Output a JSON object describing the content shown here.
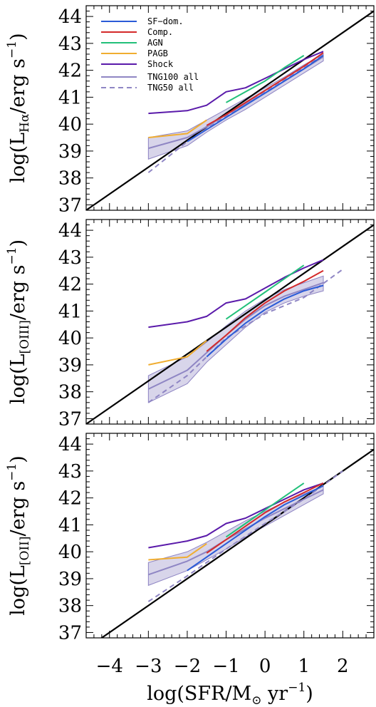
{
  "chart_data": {
    "type": "line",
    "x_axis": {
      "label_parts": [
        "log(SFR/M",
        "⊙",
        " yr",
        "−1",
        ")"
      ],
      "ticks": [
        -4,
        -3,
        -2,
        -1,
        0,
        1,
        2
      ],
      "tick_labels": [
        "−4",
        "−3",
        "−2",
        "−1",
        "0",
        "1",
        "2"
      ],
      "xlim": [
        -4.6,
        2.8
      ]
    },
    "legend": {
      "position": "top-left",
      "entries": [
        {
          "label": "SF−dom.",
          "color": "#2a5bd7",
          "style": "solid"
        },
        {
          "label": "Comp.",
          "color": "#d42a2a",
          "style": "solid"
        },
        {
          "label": "AGN",
          "color": "#22c07a",
          "style": "solid"
        },
        {
          "label": "PAGB",
          "color": "#f0ad30",
          "style": "solid"
        },
        {
          "label": "Shock",
          "color": "#5a1aaa",
          "style": "solid"
        },
        {
          "label": "TNG100 all",
          "color": "#8f86c4",
          "style": "solid"
        },
        {
          "label": "TNG50 all",
          "color": "#8f86c4",
          "style": "dashed"
        }
      ]
    },
    "panels": [
      {
        "id": "halpha",
        "ylabel_parts": [
          "log(L",
          "Hα",
          "/erg s",
          "−1",
          ")"
        ],
        "ylim": [
          36.8,
          44.4
        ],
        "yticks": [
          37,
          38,
          39,
          40,
          41,
          42,
          43,
          44
        ],
        "ytick_labels": [
          "37",
          "38",
          "39",
          "40",
          "41",
          "42",
          "43",
          "44"
        ],
        "reference_line": {
          "x": [
            -4.6,
            2.8
          ],
          "y": [
            36.8,
            44.2
          ],
          "color": "#000000"
        },
        "band": {
          "x": [
            -3,
            -2,
            -1.5,
            -1,
            -0.5,
            0,
            0.5,
            1,
            1.5
          ],
          "lower": [
            38.7,
            39.2,
            39.7,
            40.15,
            40.55,
            41.0,
            41.45,
            41.9,
            42.35
          ],
          "upper": [
            39.5,
            39.75,
            40.15,
            40.55,
            40.95,
            41.35,
            41.75,
            42.2,
            42.6
          ],
          "color": "#8f86c4"
        },
        "series": [
          {
            "name": "TNG100 all",
            "color": "#8f86c4",
            "dash": false,
            "x": [
              -3,
              -2,
              -1.5,
              -1,
              -0.5,
              0,
              0.5,
              1,
              1.5
            ],
            "y": [
              39.1,
              39.5,
              39.9,
              40.35,
              40.75,
              41.15,
              41.6,
              42.05,
              42.5
            ]
          },
          {
            "name": "TNG50 all",
            "color": "#8f86c4",
            "dash": true,
            "x": [
              -3,
              -2,
              -1,
              0,
              1,
              1.5
            ],
            "y": [
              38.2,
              39.35,
              40.3,
              41.2,
              42.1,
              42.6
            ]
          },
          {
            "name": "Shock",
            "color": "#5a1aaa",
            "dash": false,
            "x": [
              -3,
              -2,
              -1.5,
              -1,
              -0.5,
              0,
              0.5,
              1,
              1.5
            ],
            "y": [
              40.4,
              40.5,
              40.7,
              41.2,
              41.35,
              41.7,
              42.05,
              42.4,
              42.7
            ]
          },
          {
            "name": "AGN",
            "color": "#22c07a",
            "dash": false,
            "x": [
              -1,
              -0.5,
              0,
              0.5,
              1
            ],
            "y": [
              40.8,
              41.2,
              41.6,
              42.1,
              42.55
            ]
          },
          {
            "name": "PAGB",
            "color": "#f0ad30",
            "dash": false,
            "x": [
              -3,
              -2,
              -1.5
            ],
            "y": [
              39.5,
              39.65,
              40.15
            ]
          },
          {
            "name": "Comp.",
            "color": "#d42a2a",
            "dash": false,
            "x": [
              -1.5,
              -1,
              -0.5,
              0,
              0.5,
              1,
              1.5
            ],
            "y": [
              39.95,
              40.35,
              40.8,
              41.25,
              41.7,
              42.15,
              42.65
            ]
          },
          {
            "name": "SF−dom.",
            "color": "#2a5bd7",
            "dash": false,
            "x": [
              -2,
              -1.5,
              -1,
              -0.5,
              0,
              0.5,
              1,
              1.5
            ],
            "y": [
              39.35,
              39.8,
              40.25,
              40.7,
              41.15,
              41.6,
              42.05,
              42.55
            ]
          }
        ]
      },
      {
        "id": "oiii",
        "ylabel_parts": [
          "log(L",
          "[OIII]",
          "/erg s",
          "−1",
          ")"
        ],
        "ylim": [
          36.8,
          44.4
        ],
        "yticks": [
          37,
          38,
          39,
          40,
          41,
          42,
          43,
          44
        ],
        "ytick_labels": [
          "37",
          "38",
          "39",
          "40",
          "41",
          "42",
          "43",
          "44"
        ],
        "reference_line": {
          "x": [
            -4.6,
            2.8
          ],
          "y": [
            36.8,
            44.2
          ],
          "color": "#000000"
        },
        "band": {
          "x": [
            -3,
            -2,
            -1.5,
            -1,
            -0.5,
            0,
            0.5,
            1,
            1.5
          ],
          "lower": [
            37.6,
            38.3,
            39.1,
            39.75,
            40.4,
            40.95,
            41.3,
            41.55,
            41.75
          ],
          "upper": [
            38.6,
            39.3,
            39.85,
            40.45,
            41.0,
            41.45,
            41.8,
            42.05,
            42.3
          ],
          "color": "#8f86c4"
        },
        "series": [
          {
            "name": "TNG100 all",
            "color": "#8f86c4",
            "dash": false,
            "x": [
              -3,
              -2,
              -1.5,
              -1,
              -0.5,
              0,
              0.5,
              1,
              1.5
            ],
            "y": [
              38.1,
              38.8,
              39.45,
              40.1,
              40.7,
              41.2,
              41.55,
              41.8,
              42.05
            ]
          },
          {
            "name": "TNG50 all",
            "color": "#8f86c4",
            "dash": true,
            "x": [
              -3,
              -2,
              -1,
              0,
              1,
              2
            ],
            "y": [
              37.6,
              38.6,
              40.0,
              40.9,
              41.5,
              42.55
            ]
          },
          {
            "name": "Shock",
            "color": "#5a1aaa",
            "dash": false,
            "x": [
              -3,
              -2,
              -1.5,
              -1,
              -0.5,
              0,
              0.5,
              1,
              1.5
            ],
            "y": [
              40.4,
              40.6,
              40.8,
              41.3,
              41.45,
              41.85,
              42.25,
              42.6,
              42.9
            ]
          },
          {
            "name": "AGN",
            "color": "#22c07a",
            "dash": false,
            "x": [
              -1,
              -0.5,
              0,
              0.5,
              1
            ],
            "y": [
              40.7,
              41.2,
              41.7,
              42.2,
              42.7
            ]
          },
          {
            "name": "PAGB",
            "color": "#f0ad30",
            "dash": false,
            "x": [
              -3,
              -2,
              -1.5
            ],
            "y": [
              39.0,
              39.3,
              39.9
            ]
          },
          {
            "name": "Comp.",
            "color": "#d42a2a",
            "dash": false,
            "x": [
              -1.5,
              -1,
              -0.5,
              0,
              0.5,
              1,
              1.5
            ],
            "y": [
              39.5,
              40.1,
              40.75,
              41.3,
              41.75,
              42.1,
              42.5
            ]
          },
          {
            "name": "SF−dom.",
            "color": "#2a5bd7",
            "dash": false,
            "x": [
              -1.5,
              -1,
              -0.5,
              0,
              0.5,
              1,
              1.5
            ],
            "y": [
              39.3,
              39.95,
              40.55,
              41.05,
              41.45,
              41.75,
              41.95
            ]
          }
        ]
      },
      {
        "id": "oii",
        "ylabel_parts": [
          "log(L",
          "[OII]",
          "/erg s",
          "−1",
          ")"
        ],
        "ylim": [
          36.8,
          44.4
        ],
        "yticks": [
          37,
          38,
          39,
          40,
          41,
          42,
          43,
          44
        ],
        "ytick_labels": [
          "37",
          "38",
          "39",
          "40",
          "41",
          "42",
          "43",
          "44"
        ],
        "reference_line": {
          "x": [
            -4.6,
            2.8
          ],
          "y": [
            36.4,
            43.8
          ],
          "color": "#000000"
        },
        "band": {
          "x": [
            -3,
            -2,
            -1.5,
            -1,
            -0.5,
            0,
            0.5,
            1,
            1.5
          ],
          "lower": [
            38.75,
            39.3,
            39.7,
            40.1,
            40.55,
            40.95,
            41.35,
            41.75,
            42.15
          ],
          "upper": [
            39.6,
            40.0,
            40.35,
            40.75,
            41.15,
            41.5,
            41.85,
            42.15,
            42.45
          ],
          "color": "#8f86c4"
        },
        "series": [
          {
            "name": "TNG100 all",
            "color": "#8f86c4",
            "dash": false,
            "x": [
              -3,
              -2,
              -1.5,
              -1,
              -0.5,
              0,
              0.5,
              1,
              1.5
            ],
            "y": [
              39.15,
              39.65,
              40.0,
              40.45,
              40.85,
              41.25,
              41.6,
              41.95,
              42.3
            ]
          },
          {
            "name": "TNG50 all",
            "color": "#8f86c4",
            "dash": true,
            "x": [
              -3,
              -2,
              -1,
              0,
              1,
              2
            ],
            "y": [
              38.15,
              39.1,
              40.1,
              41.05,
              41.95,
              43.0
            ]
          },
          {
            "name": "Shock",
            "color": "#5a1aaa",
            "dash": false,
            "x": [
              -3,
              -2,
              -1.5,
              -1,
              -0.5,
              0,
              0.5,
              1,
              1.5
            ],
            "y": [
              40.15,
              40.4,
              40.6,
              41.05,
              41.25,
              41.6,
              41.95,
              42.3,
              42.55
            ]
          },
          {
            "name": "AGN",
            "color": "#22c07a",
            "dash": false,
            "x": [
              -1,
              -0.5,
              0,
              0.5,
              1
            ],
            "y": [
              40.55,
              41.05,
              41.55,
              42.05,
              42.55
            ]
          },
          {
            "name": "PAGB",
            "color": "#f0ad30",
            "dash": false,
            "x": [
              -3,
              -2,
              -1.5
            ],
            "y": [
              39.7,
              39.8,
              40.3
            ]
          },
          {
            "name": "Comp.",
            "color": "#d42a2a",
            "dash": false,
            "x": [
              -1.5,
              -1,
              -0.5,
              0,
              0.5,
              1,
              1.5
            ],
            "y": [
              39.95,
              40.45,
              40.95,
              41.45,
              41.85,
              42.2,
              42.55
            ]
          },
          {
            "name": "SF−dom.",
            "color": "#2a5bd7",
            "dash": false,
            "x": [
              -2,
              -1.5,
              -1,
              -0.5,
              0,
              0.5,
              1,
              1.5
            ],
            "y": [
              39.3,
              39.8,
              40.3,
              40.8,
              41.3,
              41.75,
              42.1,
              42.45
            ]
          }
        ]
      }
    ]
  }
}
